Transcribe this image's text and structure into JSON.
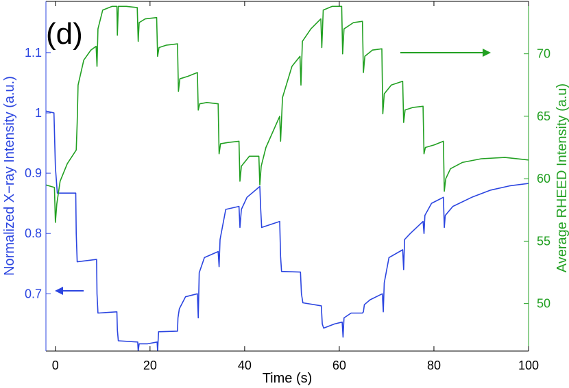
{
  "chart_data": {
    "type": "line",
    "panel_label": "(d)",
    "xlabel": "Time (s)",
    "xlim": [
      -2,
      100
    ],
    "xticks": [
      0,
      20,
      40,
      60,
      80,
      100
    ],
    "left_axis": {
      "label": "Normalized X−ray Intensity (a.u.)",
      "ylim": [
        0.605,
        1.185
      ],
      "ticks": [
        0.7,
        0.8,
        0.9,
        1.0,
        1.1
      ],
      "tick_labels": [
        "0.7",
        "0.8",
        "0.9",
        "1",
        "1.1"
      ],
      "color": "#2b45e0"
    },
    "right_axis": {
      "label": "Average RHEED Intensity (a.u)",
      "ylim": [
        46.2,
        74.2
      ],
      "ticks": [
        50,
        55,
        60,
        65,
        70
      ],
      "tick_labels": [
        "50",
        "55",
        "60",
        "65",
        "70"
      ],
      "color": "#22a022"
    },
    "series": [
      {
        "axis": "left",
        "color": "#2b45e0",
        "x": [
          -2,
          -0.3,
          0.0,
          0.4,
          1.0,
          4.3,
          4.4,
          4.6,
          8.7,
          8.8,
          9.0,
          13.0,
          13.1,
          13.3,
          17.4,
          17.5,
          17.7,
          19.5,
          21.5,
          21.6,
          21.8,
          25.8,
          25.9,
          26.2,
          27.5,
          30.0,
          30.2,
          30.4,
          31.5,
          34.4,
          34.6,
          34.8,
          36.0,
          38.8,
          39.0,
          39.3,
          40.5,
          43.2,
          43.4,
          43.6,
          47.4,
          47.6,
          47.8,
          51.8,
          52.0,
          52.3,
          56.2,
          56.4,
          56.7,
          59.0,
          60.6,
          60.8,
          61.0,
          62.5,
          64.9,
          65.1,
          65.3,
          66.5,
          69.1,
          69.3,
          69.5,
          70.5,
          73.4,
          73.6,
          73.8,
          75.0,
          77.7,
          77.9,
          78.1,
          79.5,
          82.0,
          82.2,
          82.4,
          84.0,
          88.0,
          92.0,
          96.0,
          100
        ],
        "values": [
          1.003,
          1.0,
          0.91,
          0.867,
          0.867,
          0.867,
          0.8,
          0.753,
          0.757,
          0.7,
          0.668,
          0.67,
          0.64,
          0.622,
          0.62,
          0.605,
          0.617,
          0.617,
          0.62,
          0.605,
          0.637,
          0.638,
          0.66,
          0.675,
          0.695,
          0.7,
          0.66,
          0.735,
          0.76,
          0.77,
          0.745,
          0.79,
          0.84,
          0.845,
          0.81,
          0.84,
          0.86,
          0.878,
          0.84,
          0.81,
          0.82,
          0.762,
          0.737,
          0.736,
          0.7,
          0.685,
          0.68,
          0.65,
          0.643,
          0.65,
          0.653,
          0.628,
          0.66,
          0.668,
          0.668,
          0.67,
          0.682,
          0.69,
          0.7,
          0.67,
          0.718,
          0.76,
          0.773,
          0.74,
          0.79,
          0.8,
          0.82,
          0.8,
          0.83,
          0.85,
          0.86,
          0.81,
          0.83,
          0.845,
          0.86,
          0.872,
          0.879,
          0.883
        ]
      },
      {
        "axis": "right",
        "color": "#22a022",
        "x": [
          -2,
          -0.2,
          0.0,
          0.3,
          1.0,
          2.5,
          4.4,
          4.6,
          4.8,
          6.0,
          7.5,
          8.6,
          8.8,
          9.0,
          10.0,
          12.0,
          13.0,
          13.1,
          13.3,
          15.0,
          17.3,
          17.5,
          17.7,
          19.0,
          21.4,
          21.6,
          21.9,
          23.5,
          25.8,
          26.0,
          26.3,
          28.0,
          30.0,
          30.2,
          30.5,
          32.0,
          34.4,
          34.6,
          34.9,
          36.5,
          38.8,
          39.0,
          39.3,
          41.0,
          43.0,
          43.2,
          43.5,
          44.5,
          47.4,
          47.6,
          48.0,
          50.0,
          51.7,
          51.9,
          52.2,
          54.0,
          56.1,
          56.3,
          56.6,
          58.5,
          60.5,
          60.7,
          61.0,
          63.0,
          64.9,
          65.1,
          65.4,
          67.0,
          69.0,
          69.2,
          69.5,
          71.0,
          73.4,
          73.6,
          73.9,
          75.5,
          77.7,
          77.9,
          78.2,
          80.0,
          82.0,
          82.2,
          82.5,
          83.5,
          86.0,
          90.0,
          95.0,
          100
        ],
        "values": [
          59.5,
          59.3,
          56.5,
          58.0,
          59.8,
          61.2,
          62.3,
          64.5,
          67.5,
          69.5,
          70.3,
          70.6,
          69.0,
          72.0,
          73.5,
          73.8,
          73.8,
          71.5,
          73.8,
          73.8,
          73.7,
          71.0,
          72.5,
          72.8,
          72.9,
          69.8,
          70.5,
          70.7,
          70.8,
          67.0,
          68.0,
          68.2,
          68.5,
          65.5,
          66.0,
          66.1,
          66.0,
          62.0,
          62.8,
          62.9,
          63.0,
          59.8,
          61.0,
          61.8,
          61.8,
          59.5,
          61.0,
          62.5,
          65.0,
          63.0,
          66.5,
          69.0,
          69.8,
          67.5,
          71.0,
          72.0,
          72.8,
          70.5,
          73.5,
          73.8,
          73.8,
          70.0,
          72.0,
          72.5,
          72.6,
          68.5,
          69.8,
          70.3,
          70.4,
          65.2,
          66.8,
          67.5,
          67.8,
          64.5,
          65.5,
          65.7,
          65.8,
          62.0,
          62.5,
          62.7,
          63.0,
          59.0,
          60.0,
          60.8,
          61.3,
          61.6,
          61.7,
          61.5
        ]
      }
    ],
    "annotations": {
      "left_arrow": "arrow-left",
      "right_arrow": "arrow-right"
    }
  }
}
